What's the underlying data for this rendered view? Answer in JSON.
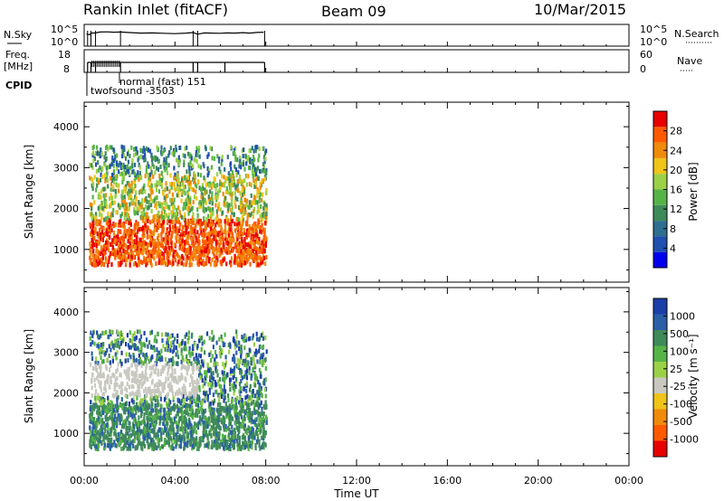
{
  "header": {
    "station": "Rankin Inlet (fitACF)",
    "beam": "Beam 09",
    "date": "10/Mar/2015"
  },
  "chart_data": [
    {
      "type": "line",
      "name": "noise-panel",
      "left_label": "N.Sky",
      "right_label": "N.Search",
      "left_ticks": [
        "10^5",
        "10^0"
      ],
      "right_ticks": [
        "10^5",
        "10^0"
      ],
      "x_range_hours": [
        0,
        24
      ],
      "n_sky": {
        "x": [
          0.1,
          0.25,
          0.3,
          0.5,
          0.7,
          1.0,
          1.3,
          1.6,
          2.0,
          2.5,
          3.0,
          3.5,
          4.0,
          4.5,
          4.8,
          5.0,
          5.3,
          5.6,
          6.0,
          6.3,
          6.6,
          7.0,
          7.3,
          7.6,
          7.9
        ],
        "y": [
          0.6,
          0.55,
          0.7,
          0.72,
          0.8,
          0.82,
          0.78,
          0.8,
          0.75,
          0.7,
          0.72,
          0.68,
          0.65,
          0.7,
          0.75,
          0.6,
          0.72,
          0.7,
          0.68,
          0.72,
          0.7,
          0.74,
          0.7,
          0.76,
          0.78
        ]
      }
    },
    {
      "type": "line",
      "name": "frequency-panel",
      "left_label": "Freq.",
      "left_unit": "[MHz]",
      "right_label": "Nave",
      "left_ticks": [
        "18",
        "8"
      ],
      "right_ticks": [
        "60",
        "0"
      ],
      "x_range_hours": [
        0,
        24
      ],
      "segment_breaks_hours": [
        0.15,
        0.3,
        0.5,
        1.6,
        4.8,
        5.0,
        6.2,
        7.95
      ]
    },
    {
      "type": "table",
      "name": "cpid-annotations",
      "label": "CPID",
      "entries": [
        {
          "text": "normal (fast) 151",
          "start_hour": 1.6
        },
        {
          "text": "twofsound -3503",
          "start_hour": 0.3
        }
      ]
    },
    {
      "type": "heatmap",
      "name": "power-panel",
      "ylabel": "Slant Range [km]",
      "yticks": [
        1000,
        2000,
        3000,
        4000
      ],
      "ylim": [
        200,
        4600
      ],
      "xlim": [
        0,
        24
      ],
      "colorbar_label": "Power [dB]",
      "colorbar_ticks": [
        "28",
        "24",
        "20",
        "16",
        "12",
        "8",
        "4"
      ],
      "colors": [
        "#0000ee",
        "#1f4fb0",
        "#2e6e8e",
        "#3f8a5a",
        "#56b447",
        "#9bd146",
        "#f0c419",
        "#f08a0b",
        "#ff5a00",
        "#e80000"
      ],
      "data_extent_hours": [
        0.2,
        8.0
      ],
      "features": [
        {
          "desc": "strong echo band",
          "range_km": [
            600,
            1700
          ],
          "level": "high"
        },
        {
          "desc": "mid echoes",
          "range_km": [
            1700,
            2800
          ],
          "level": "mid"
        },
        {
          "desc": "sparse high range",
          "range_km": [
            2800,
            3500
          ],
          "level": "low"
        }
      ]
    },
    {
      "type": "heatmap",
      "name": "velocity-panel",
      "ylabel": "Slant Range [km]",
      "xlabel": "Time UT",
      "yticks": [
        1000,
        2000,
        3000,
        4000
      ],
      "ylim": [
        200,
        4600
      ],
      "xlim": [
        0,
        24
      ],
      "xticks": [
        "00:00",
        "04:00",
        "08:00",
        "12:00",
        "16:00",
        "20:00",
        "00:00"
      ],
      "colorbar_label": "Velocity [m s⁻¹]",
      "colorbar_ticks": [
        "1000",
        "500",
        "100",
        "25",
        "-25",
        "-100",
        "-500",
        "-1000"
      ],
      "colors": [
        "#1b3fa8",
        "#2a5fa8",
        "#3f8a5a",
        "#56b447",
        "#9bd146",
        "#c8c8c0",
        "#f0c419",
        "#f08a0b",
        "#ff5a00",
        "#e80000"
      ],
      "data_extent_hours": [
        0.2,
        8.0
      ]
    }
  ]
}
